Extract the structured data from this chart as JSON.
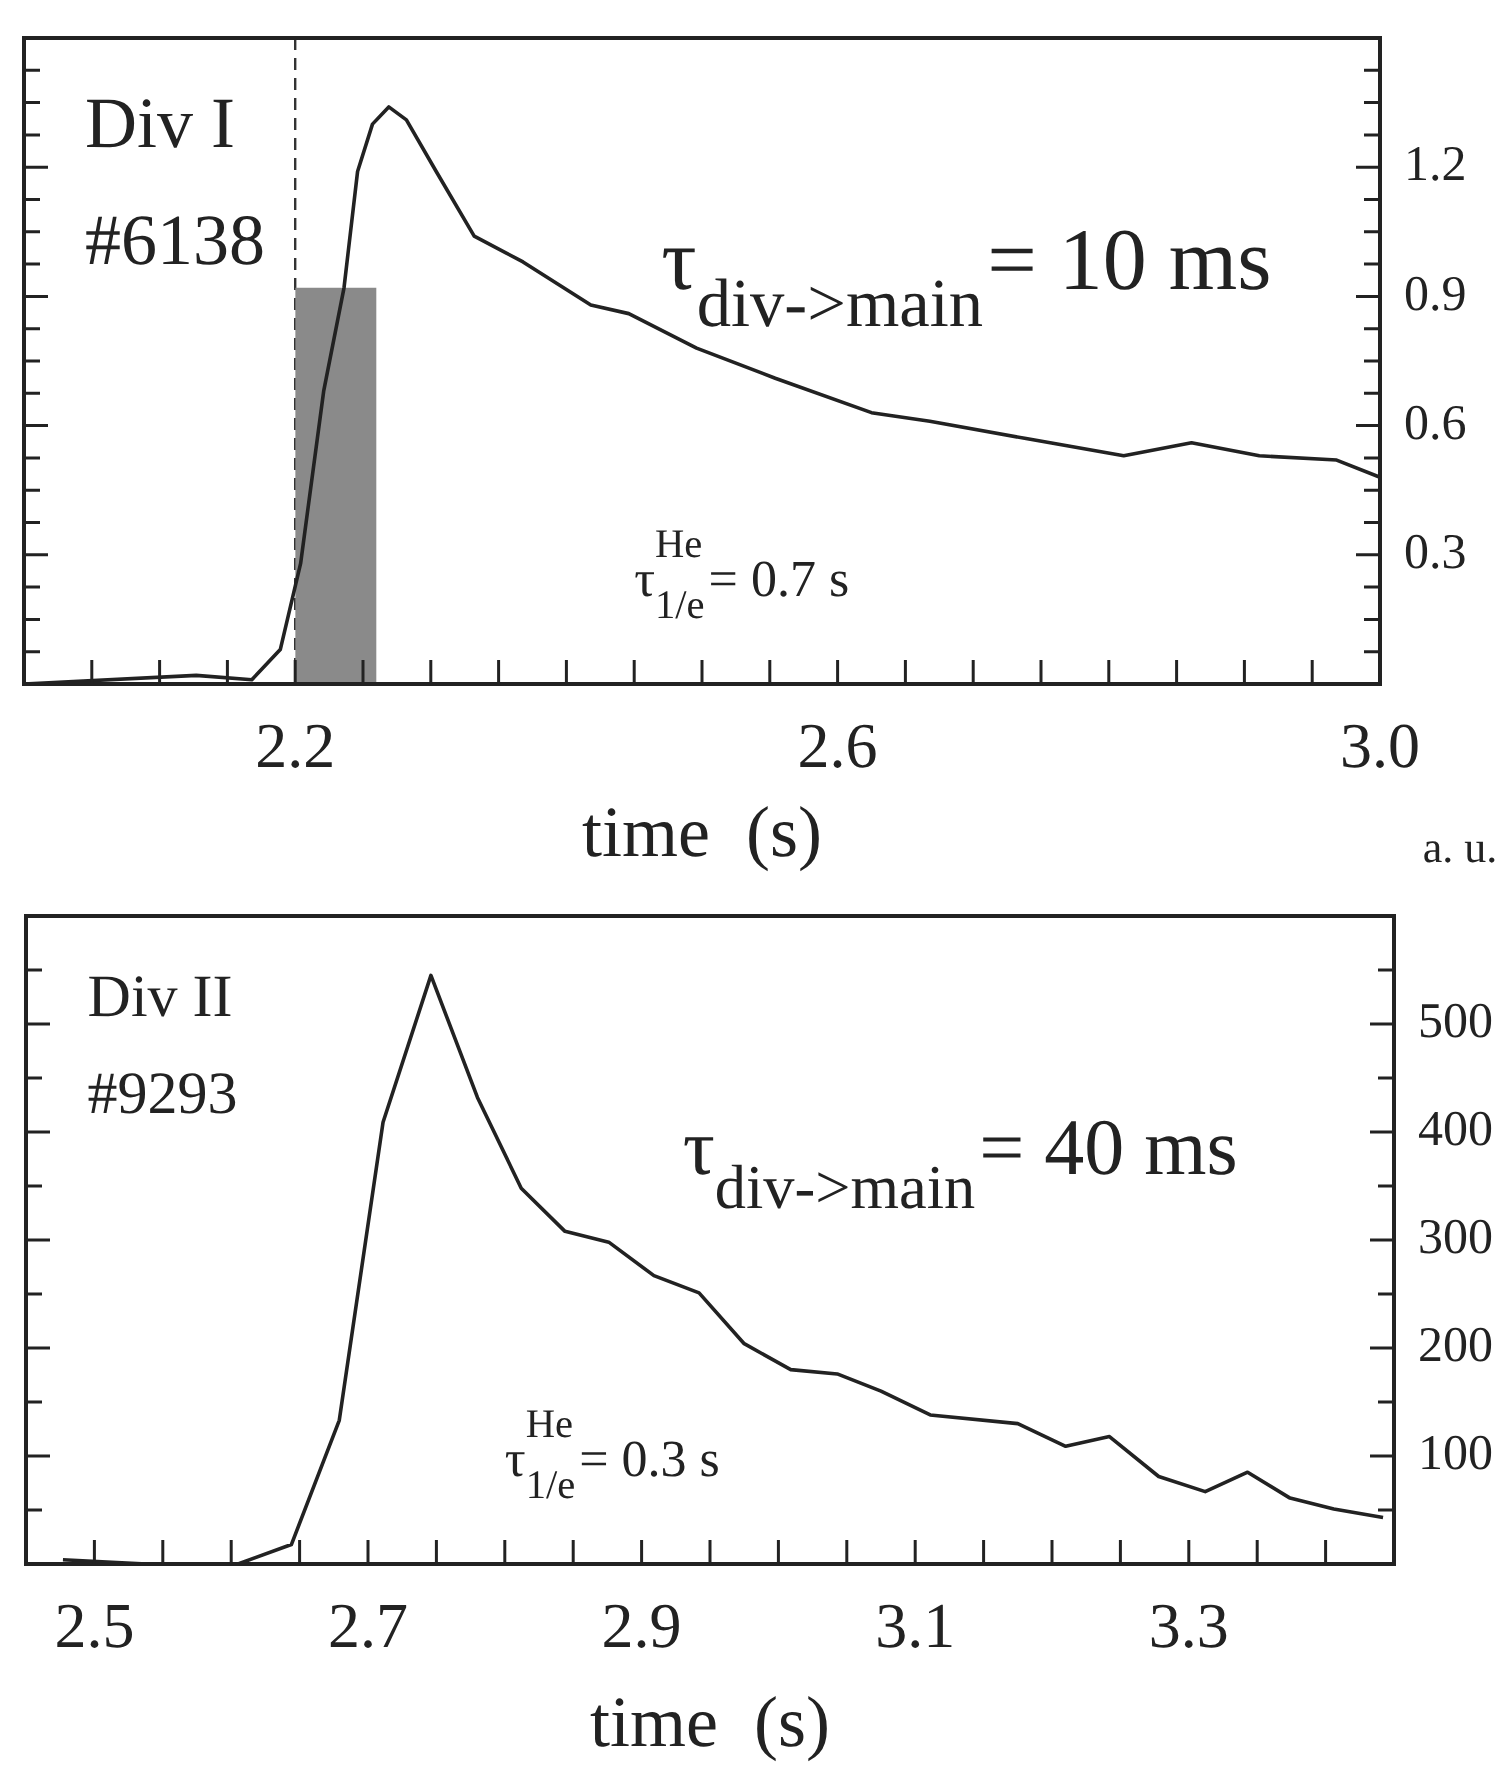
{
  "chart_data": [
    {
      "type": "line",
      "xlabel": "time  (s)",
      "series": [
        {
          "type": "line",
          "color": "#222222",
          "x": [
            2.0,
            2.127,
            2.168,
            2.189,
            2.204,
            2.221,
            2.236,
            2.246,
            2.257,
            2.269,
            2.282,
            2.304,
            2.332,
            2.368,
            2.418,
            2.446,
            2.496,
            2.554,
            2.625,
            2.668,
            2.739,
            2.811,
            2.861,
            2.911,
            2.968,
            3.0
          ],
          "values": [
            0,
            0.02,
            0.01,
            0.08,
            0.28,
            0.68,
            0.92,
            1.19,
            1.3,
            1.34,
            1.31,
            1.19,
            1.04,
            0.98,
            0.88,
            0.86,
            0.78,
            0.71,
            0.63,
            0.61,
            0.57,
            0.53,
            0.56,
            0.53,
            0.52,
            0.48
          ]
        },
        {
          "type": "area",
          "color": "#8a8a8a",
          "x": [
            2.2,
            2.26
          ],
          "values": [
            0.92,
            0.92
          ]
        }
      ],
      "xlim": [
        2.0,
        3.0
      ],
      "xticks": [
        {
          "value": 2.05,
          "label": null
        },
        {
          "value": 2.1,
          "label": null
        },
        {
          "value": 2.15,
          "label": null
        },
        2.2,
        {
          "value": 2.25,
          "label": null
        },
        {
          "value": 2.3,
          "label": null
        },
        {
          "value": 2.35,
          "label": null
        },
        {
          "value": 2.4,
          "label": null
        },
        {
          "value": 2.45,
          "label": null
        },
        {
          "value": 2.5,
          "label": null
        },
        {
          "value": 2.55,
          "label": null
        },
        2.6,
        {
          "value": 2.65,
          "label": null
        },
        {
          "value": 2.7,
          "label": null
        },
        {
          "value": 2.75,
          "label": null
        },
        {
          "value": 2.8,
          "label": null
        },
        {
          "value": 2.85,
          "label": null
        },
        {
          "value": 2.9,
          "label": null
        },
        {
          "value": 2.95,
          "label": null
        },
        {
          "value": 3.0,
          "label": "3.0"
        }
      ],
      "ylim": [
        0,
        1.5
      ],
      "yticks": [
        {
          "value": 0.075,
          "label": null
        },
        {
          "value": 0.15,
          "label": null
        },
        {
          "value": 0.225,
          "label": null
        },
        0.3,
        {
          "value": 0.375,
          "label": null
        },
        {
          "value": 0.45,
          "label": null
        },
        {
          "value": 0.525,
          "label": null
        },
        0.6,
        {
          "value": 0.675,
          "label": null
        },
        {
          "value": 0.75,
          "label": null
        },
        {
          "value": 0.825,
          "label": null
        },
        0.9,
        {
          "value": 0.975,
          "label": null
        },
        {
          "value": 1.05,
          "label": null
        },
        {
          "value": 1.125,
          "label": null
        },
        1.2,
        {
          "value": 1.275,
          "label": null
        },
        {
          "value": 1.35,
          "label": null
        },
        {
          "value": 1.425,
          "label": null
        }
      ],
      "ref_lines": [
        {
          "axis": "x",
          "value": 2.2,
          "label": null,
          "color": "#333333",
          "line_style": "dashed"
        }
      ],
      "annotations": [
        "Div I",
        "#6138",
        "τ$_{div->main}$= 10 ms",
        "τ$^{He}$$_{1/e}$= 0.7 s"
      ]
    },
    {
      "type": "line",
      "xlabel": "time  (s)",
      "ylabel": "a. u.",
      "series": [
        {
          "type": "line",
          "color": "#222222",
          "x": [
            2.477,
            2.538,
            2.605,
            2.644,
            2.679,
            2.711,
            2.746,
            2.78,
            2.812,
            2.844,
            2.876,
            2.909,
            2.942,
            2.975,
            3.009,
            3.043,
            3.075,
            3.111,
            3.175,
            3.21,
            3.242,
            3.278,
            3.312,
            3.343,
            3.374,
            3.406,
            3.442
          ],
          "values": [
            4,
            0,
            0,
            18,
            133,
            409,
            545,
            432,
            348,
            308,
            298,
            267,
            251,
            204,
            180,
            176,
            160,
            138,
            130,
            109,
            118,
            81,
            67,
            85,
            61,
            51,
            43
          ]
        }
      ],
      "xlim": [
        2.45,
        3.45
      ],
      "xticks": [
        2.5,
        {
          "value": 2.55,
          "label": null
        },
        {
          "value": 2.6,
          "label": null
        },
        {
          "value": 2.65,
          "label": null
        },
        2.7,
        {
          "value": 2.75,
          "label": null
        },
        {
          "value": 2.8,
          "label": null
        },
        {
          "value": 2.85,
          "label": null
        },
        2.9,
        {
          "value": 2.95,
          "label": null
        },
        {
          "value": 3.0,
          "label": null
        },
        {
          "value": 3.05,
          "label": null
        },
        3.1,
        {
          "value": 3.15,
          "label": null
        },
        {
          "value": 3.2,
          "label": null
        },
        {
          "value": 3.25,
          "label": null
        },
        3.3,
        {
          "value": 3.35,
          "label": null
        },
        {
          "value": 3.4,
          "label": null
        }
      ],
      "ylim": [
        0,
        600
      ],
      "yticks": [
        {
          "value": 50,
          "label": null
        },
        100,
        {
          "value": 150,
          "label": null
        },
        200,
        {
          "value": 250,
          "label": null
        },
        300,
        {
          "value": 350,
          "label": null
        },
        400,
        {
          "value": 450,
          "label": null
        },
        500,
        {
          "value": 550,
          "label": null
        }
      ],
      "annotations": [
        "Div II",
        "#9293",
        "τ$_{div->main}$= 40 ms",
        "τ$^{He}$$_{1/e}$= 0.3 s"
      ]
    }
  ]
}
